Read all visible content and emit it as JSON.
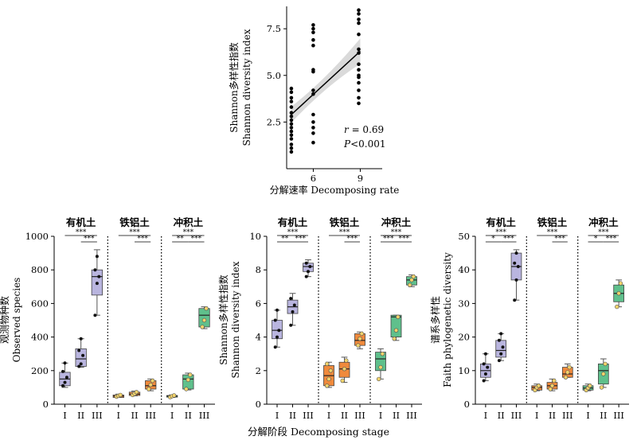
{
  "colors": {
    "有机土": "#b9b5df",
    "铁铝土": "#f08a3c",
    "冲积土": "#5fc08c",
    "line": "#000000",
    "ci": "#d4d4d4"
  },
  "top": {
    "xlabel": "分解速率 Decomposing rate",
    "ylabel_cn": "Shannon多样性指数",
    "ylabel_en": "Shannon diversity index",
    "r_label": "r",
    "r_value": "= 0.69",
    "p_label": "P",
    "p_value": "<0.001"
  },
  "bottom": {
    "xlabel": "分解阶段 Decomposing stage",
    "stages": [
      "I",
      "II",
      "III"
    ],
    "groups": [
      "有机土",
      "铁铝土",
      "冲积土"
    ]
  },
  "chart_data": [
    {
      "type": "scatter",
      "xlabel": "分解速率 Decomposing rate",
      "ylabel": "Shannon多样性指数 Shannon diversity index",
      "xticks": [
        6,
        9
      ],
      "yticks": [
        2.5,
        5.0,
        7.5
      ],
      "xlim": [
        4.3,
        10.4
      ],
      "ylim": [
        0,
        8.7
      ],
      "annotation": "r = 0.69, P<0.001",
      "regression": {
        "x": [
          4.6,
          9.0
        ],
        "y": [
          2.9,
          6.3
        ]
      },
      "points": [
        {
          "x": 4.6,
          "y": [
            4.3,
            4.1,
            3.8,
            3.6,
            3.3,
            3.0,
            2.8,
            2.6,
            2.4,
            2.2,
            2.0,
            1.8,
            1.6,
            1.3,
            1.1,
            0.9
          ]
        },
        {
          "x": 6.0,
          "y": [
            7.7,
            7.5,
            7.3,
            6.9,
            6.6,
            5.3,
            5.2,
            4.2,
            4.0,
            2.9,
            2.5,
            2.2,
            1.9,
            1.4
          ]
        },
        {
          "x": 8.9,
          "y": [
            8.5,
            8.3,
            8.0,
            7.8,
            7.2,
            6.4,
            6.2,
            5.6,
            5.3,
            5.0,
            4.9,
            4.6,
            4.2,
            3.8,
            3.5
          ]
        }
      ]
    },
    {
      "type": "box",
      "ylabel": "观测物种数 Observed species",
      "yticks": [
        0,
        200,
        400,
        600,
        800,
        1000
      ],
      "ylim": [
        0,
        1000
      ],
      "groups": [
        "有机土",
        "铁铝土",
        "冲积土"
      ],
      "stages": [
        "I",
        "II",
        "III"
      ],
      "boxes": [
        {
          "group": "有机土",
          "stage": "I",
          "min": 100,
          "q1": 110,
          "median": 150,
          "q3": 190,
          "max": 245,
          "points": [
            110,
            130,
            160,
            195,
            245
          ]
        },
        {
          "group": "有机土",
          "stage": "II",
          "min": 220,
          "q1": 225,
          "median": 270,
          "q3": 330,
          "max": 390,
          "points": [
            225,
            240,
            290,
            320,
            390
          ]
        },
        {
          "group": "有机土",
          "stage": "III",
          "min": 530,
          "q1": 650,
          "median": 760,
          "q3": 800,
          "max": 920,
          "points": [
            530,
            720,
            760,
            800,
            880
          ]
        },
        {
          "group": "铁铝土",
          "stage": "I",
          "min": 40,
          "q1": 40,
          "median": 48,
          "q3": 55,
          "max": 60,
          "points": [
            45,
            50,
            55
          ]
        },
        {
          "group": "铁铝土",
          "stage": "II",
          "min": 50,
          "q1": 52,
          "median": 60,
          "q3": 72,
          "max": 78,
          "points": [
            55,
            62,
            72
          ]
        },
        {
          "group": "铁铝土",
          "stage": "III",
          "min": 80,
          "q1": 90,
          "median": 110,
          "q3": 140,
          "max": 150,
          "points": [
            90,
            115,
            140
          ]
        },
        {
          "group": "冲积土",
          "stage": "I",
          "min": 40,
          "q1": 42,
          "median": 48,
          "q3": 52,
          "max": 55,
          "points": [
            42,
            48,
            52
          ]
        },
        {
          "group": "冲积土",
          "stage": "II",
          "min": 85,
          "q1": 90,
          "median": 150,
          "q3": 175,
          "max": 185,
          "points": [
            90,
            145,
            175
          ]
        },
        {
          "group": "冲积土",
          "stage": "III",
          "min": 450,
          "q1": 460,
          "median": 530,
          "q3": 570,
          "max": 580,
          "points": [
            460,
            500,
            570
          ]
        }
      ],
      "significance": [
        {
          "group": "有机土",
          "pairs": [
            [
              "I",
              "III",
              "***"
            ],
            [
              "II",
              "III",
              "***"
            ]
          ]
        },
        {
          "group": "铁铝土",
          "pairs": [
            [
              "I",
              "III",
              "***"
            ],
            [
              "II",
              "III",
              "***"
            ]
          ]
        },
        {
          "group": "冲积土",
          "pairs": [
            [
              "I",
              "III",
              "***"
            ],
            [
              "I",
              "II",
              "**"
            ],
            [
              "II",
              "III",
              "***"
            ]
          ]
        }
      ]
    },
    {
      "type": "box",
      "ylabel": "Shannon多样性指数 Shannon diversity index",
      "yticks": [
        0,
        2,
        4,
        6,
        8,
        10
      ],
      "ylim": [
        0,
        10
      ],
      "groups": [
        "有机土",
        "铁铝土",
        "冲积土"
      ],
      "stages": [
        "I",
        "II",
        "III"
      ],
      "boxes": [
        {
          "group": "有机土",
          "stage": "I",
          "min": 3.4,
          "q1": 3.9,
          "median": 4.4,
          "q3": 5.0,
          "max": 5.6,
          "points": [
            3.4,
            4.0,
            4.4,
            5.0,
            5.6
          ]
        },
        {
          "group": "有机土",
          "stage": "II",
          "min": 4.7,
          "q1": 5.4,
          "median": 5.8,
          "q3": 6.2,
          "max": 6.6,
          "points": [
            4.7,
            5.5,
            5.9,
            6.3
          ]
        },
        {
          "group": "有机土",
          "stage": "III",
          "min": 7.6,
          "q1": 7.9,
          "median": 8.2,
          "q3": 8.4,
          "max": 8.6,
          "points": [
            7.6,
            7.9,
            8.2,
            8.4
          ]
        },
        {
          "group": "铁铝土",
          "stage": "I",
          "min": 1.0,
          "q1": 1.1,
          "median": 1.7,
          "q3": 2.3,
          "max": 2.5,
          "points": [
            1.1,
            1.5,
            2.0,
            2.4
          ]
        },
        {
          "group": "铁铝土",
          "stage": "II",
          "min": 1.3,
          "q1": 1.6,
          "median": 2.1,
          "q3": 2.5,
          "max": 2.8,
          "points": [
            1.4,
            2.1,
            2.6
          ]
        },
        {
          "group": "铁铝土",
          "stage": "III",
          "min": 3.3,
          "q1": 3.5,
          "median": 3.8,
          "q3": 4.2,
          "max": 4.3,
          "points": [
            3.5,
            3.9,
            4.2
          ]
        },
        {
          "group": "冲积土",
          "stage": "I",
          "min": 1.5,
          "q1": 2.0,
          "median": 2.7,
          "q3": 3.1,
          "max": 3.3,
          "points": [
            1.5,
            2.2,
            3.0
          ]
        },
        {
          "group": "冲积土",
          "stage": "II",
          "min": 3.8,
          "q1": 4.0,
          "median": 5.2,
          "q3": 5.3,
          "max": 5.3,
          "points": [
            3.9,
            4.4,
            5.2
          ]
        },
        {
          "group": "冲积土",
          "stage": "III",
          "min": 7.0,
          "q1": 7.1,
          "median": 7.4,
          "q3": 7.6,
          "max": 7.7,
          "points": [
            7.1,
            7.4,
            7.6
          ]
        }
      ],
      "significance": [
        {
          "group": "有机土",
          "pairs": [
            [
              "I",
              "III",
              "***"
            ],
            [
              "I",
              "II",
              "**"
            ],
            [
              "II",
              "III",
              "***"
            ]
          ]
        },
        {
          "group": "铁铝土",
          "pairs": [
            [
              "I",
              "III",
              "***"
            ],
            [
              "II",
              "III",
              "***"
            ]
          ]
        },
        {
          "group": "冲积土",
          "pairs": [
            [
              "I",
              "III",
              "***"
            ],
            [
              "I",
              "II",
              "***"
            ],
            [
              "II",
              "III",
              "***"
            ]
          ]
        }
      ]
    },
    {
      "type": "box",
      "ylabel": "谱系多样性 Faith phylogenetic diversity",
      "yticks": [
        0,
        10,
        20,
        30,
        40,
        50
      ],
      "ylim": [
        0,
        50
      ],
      "groups": [
        "有机土",
        "铁铝土",
        "冲积土"
      ],
      "stages": [
        "I",
        "II",
        "III"
      ],
      "boxes": [
        {
          "group": "有机土",
          "stage": "I",
          "min": 7,
          "q1": 8,
          "median": 10,
          "q3": 12,
          "max": 15,
          "points": [
            7,
            9,
            11,
            12,
            15
          ]
        },
        {
          "group": "有机土",
          "stage": "II",
          "min": 13,
          "q1": 14,
          "median": 16,
          "q3": 19,
          "max": 21,
          "points": [
            13,
            15,
            17,
            19,
            21
          ]
        },
        {
          "group": "有机土",
          "stage": "III",
          "min": 31,
          "q1": 37,
          "median": 41,
          "q3": 45,
          "max": 46,
          "points": [
            31,
            37,
            41,
            42,
            45
          ]
        },
        {
          "group": "铁铝土",
          "stage": "I",
          "min": 4,
          "q1": 4.2,
          "median": 5,
          "q3": 5.5,
          "max": 6,
          "points": [
            4.2,
            5,
            5.5
          ]
        },
        {
          "group": "铁铝土",
          "stage": "II",
          "min": 4,
          "q1": 4.5,
          "median": 5.5,
          "q3": 6.5,
          "max": 7.5,
          "points": [
            4.5,
            5.5,
            7
          ]
        },
        {
          "group": "铁铝土",
          "stage": "III",
          "min": 8,
          "q1": 8,
          "median": 9,
          "q3": 11,
          "max": 12,
          "points": [
            8,
            9.5,
            11
          ]
        },
        {
          "group": "冲积土",
          "stage": "I",
          "min": 4,
          "q1": 4.2,
          "median": 4.8,
          "q3": 5.5,
          "max": 6,
          "points": [
            4.2,
            4.8,
            5.5
          ]
        },
        {
          "group": "冲积土",
          "stage": "II",
          "min": 5,
          "q1": 6,
          "median": 10,
          "q3": 12,
          "max": 13.5,
          "points": [
            5,
            9,
            12
          ]
        },
        {
          "group": "冲积土",
          "stage": "III",
          "min": 29,
          "q1": 30.5,
          "median": 33,
          "q3": 35.5,
          "max": 37,
          "points": [
            29,
            33,
            36
          ]
        }
      ],
      "significance": [
        {
          "group": "有机土",
          "pairs": [
            [
              "I",
              "III",
              "***"
            ],
            [
              "I",
              "II",
              "*"
            ],
            [
              "II",
              "III",
              "***"
            ]
          ]
        },
        {
          "group": "铁铝土",
          "pairs": [
            [
              "I",
              "III",
              "***"
            ],
            [
              "II",
              "III",
              "***"
            ]
          ]
        },
        {
          "group": "冲积土",
          "pairs": [
            [
              "I",
              "III",
              "***"
            ],
            [
              "I",
              "II",
              "*"
            ],
            [
              "II",
              "III",
              "***"
            ]
          ]
        }
      ]
    }
  ]
}
